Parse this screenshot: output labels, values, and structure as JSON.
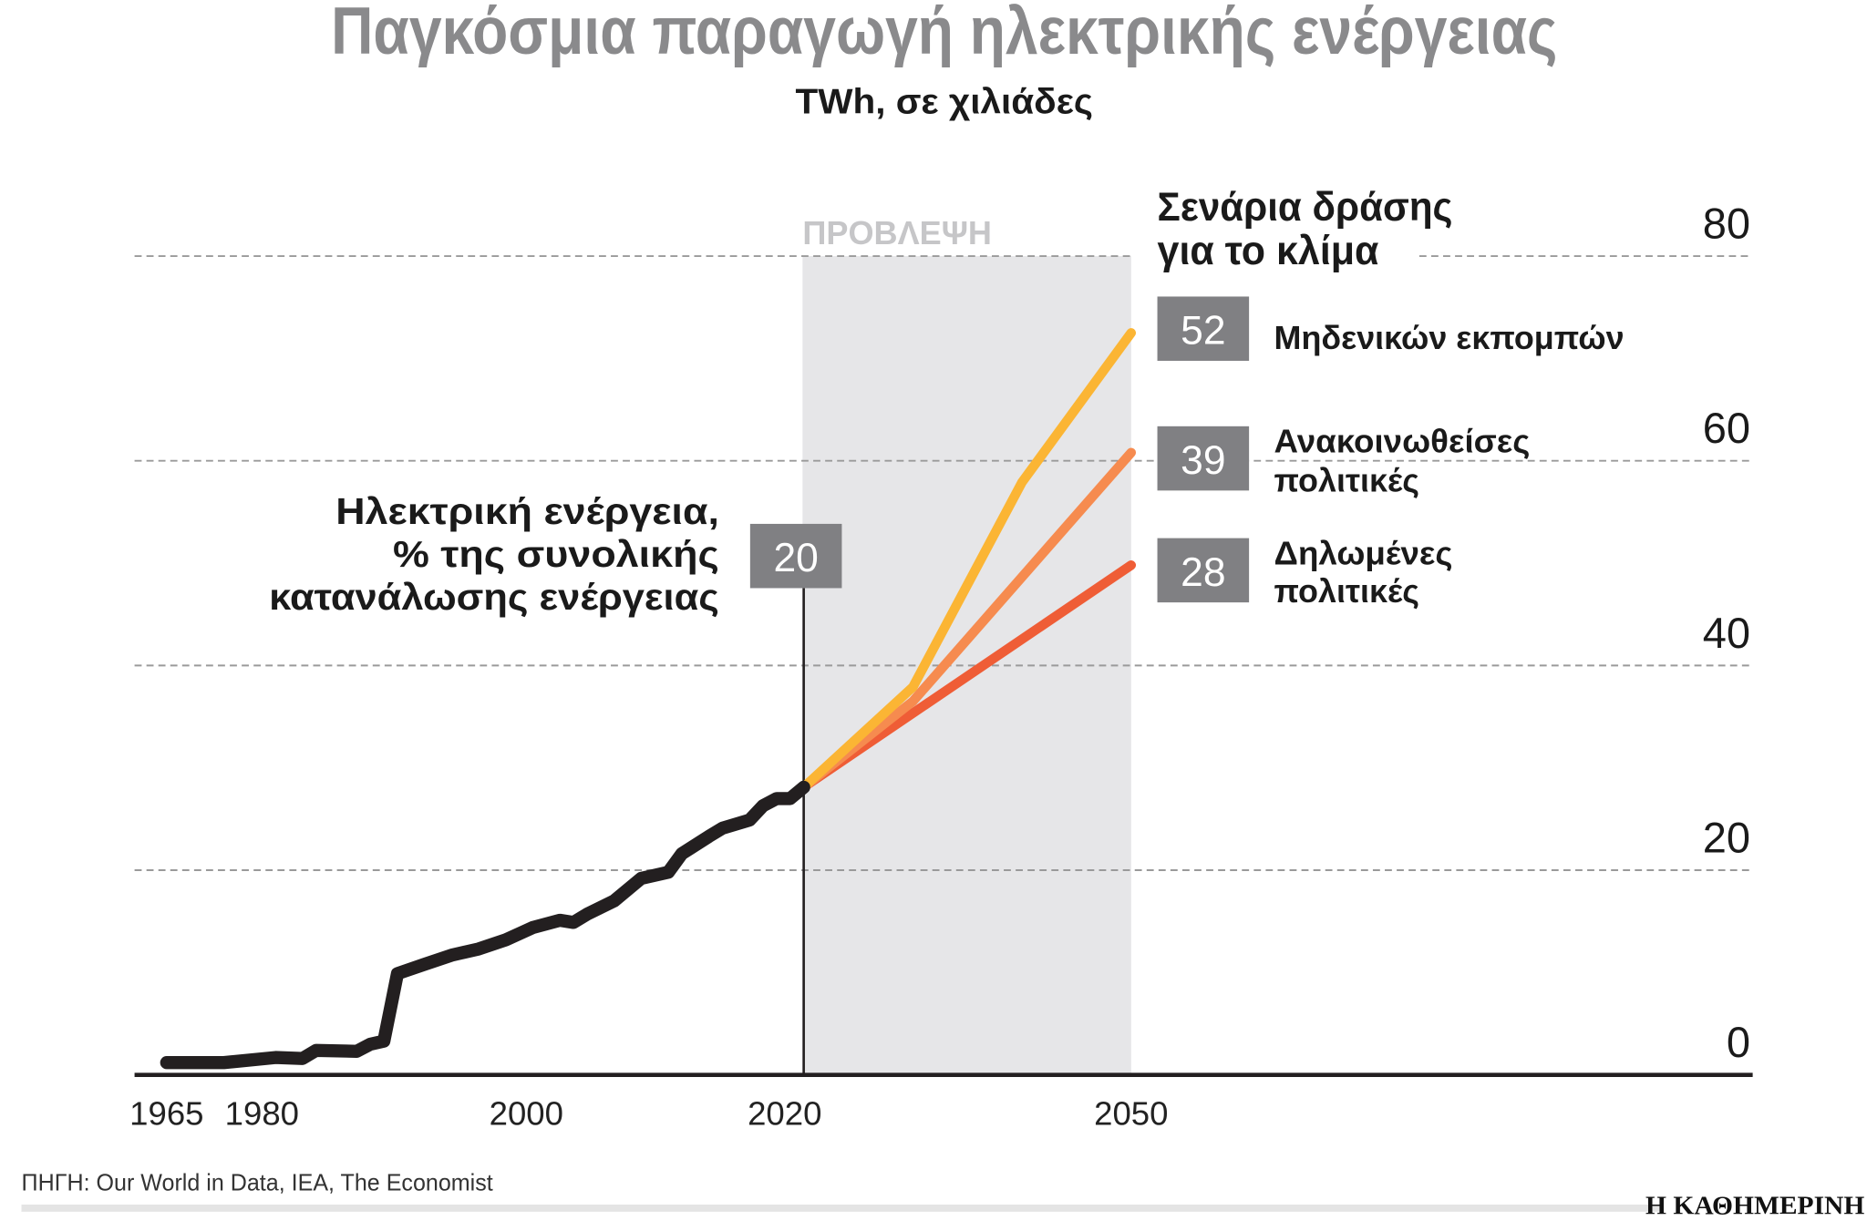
{
  "header": {
    "title": "Παγκόσμια παραγωγή ηλεκτρικής ενέργειας",
    "subtitle": "TWh, σε χιλιάδες"
  },
  "chart_data": {
    "type": "line",
    "title": "Παγκόσμια παραγωγή ηλεκτρικής ενέργειας",
    "subtitle": "TWh, σε χιλιάδες",
    "ylim": [
      0,
      80
    ],
    "yticks": [
      "80",
      "60",
      "40",
      "20",
      "0"
    ],
    "xticks": [
      "1965",
      "1980",
      "2000",
      "2020",
      "2050"
    ],
    "grid": true,
    "forecast_label": "ΠΡΟΒΛΕΨΗ",
    "forecast_range": [
      2020,
      2050
    ],
    "history": {
      "color": "#231f20",
      "x": [
        1965,
        1974,
        1981,
        1983,
        1984,
        1987,
        1988,
        1989,
        1990,
        1992,
        1994,
        1996,
        1998,
        2000,
        2002,
        2003,
        2004,
        2006,
        2008,
        2010,
        2011,
        2013,
        2014,
        2016,
        2017,
        2018,
        2019,
        2020
      ],
      "y": [
        1.2,
        1.2,
        1.7,
        1.6,
        2.4,
        2.3,
        3.0,
        3.3,
        9.9,
        10.8,
        11.7,
        12.3,
        13.2,
        14.4,
        15.1,
        14.9,
        15.7,
        17.0,
        19.2,
        19.8,
        21.6,
        23.3,
        24.1,
        24.9,
        26.3,
        27.0,
        27.0,
        28.1
      ]
    },
    "share_annotation": {
      "lines": [
        "Ηλεκτρική ενέργεια,",
        "% της συνολικής",
        "κατανάλωσης ενέργειας"
      ],
      "value": "20"
    },
    "scenarios_title": [
      "Σενάρια δράσης",
      "για το κλίμα"
    ],
    "series": [
      {
        "name": "Μηδενικών εκπομπών",
        "label_lines": [
          "Μηδενικών εκπομπών"
        ],
        "share": "52",
        "color": "#fbb534",
        "x": [
          2020,
          2030,
          2040,
          2050
        ],
        "y": [
          28.1,
          37.9,
          57.9,
          72.5
        ]
      },
      {
        "name": "Ανακοινωθείσες πολιτικές",
        "label_lines": [
          "Ανακοινωθείσες",
          "πολιτικές"
        ],
        "share": "39",
        "color": "#f68b4f",
        "x": [
          2020,
          2030,
          2050
        ],
        "y": [
          28.1,
          36.5,
          60.8
        ]
      },
      {
        "name": "Δηλωμένες πολιτικές",
        "label_lines": [
          "Δηλωμένες",
          "πολιτικές"
        ],
        "share": "28",
        "color": "#ef5d36",
        "x": [
          2020,
          2050
        ],
        "y": [
          28.1,
          49.8
        ]
      }
    ]
  },
  "footer": {
    "source": "ΠΗΓΗ: Our World in Data, IEA, The Economist",
    "logo": "Η ΚΑΘΗΜΕΡΙΝΗ"
  }
}
